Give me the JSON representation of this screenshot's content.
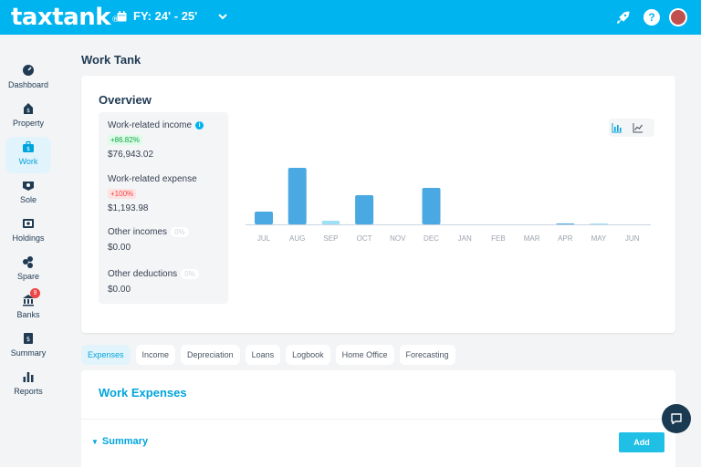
{
  "brand": {
    "logo": "taxtank",
    "reg_mark": "®"
  },
  "header": {
    "fiscal_year": "FY: 24' - 25'"
  },
  "sidebar": {
    "items": [
      {
        "label": "Dashboard",
        "icon": "dashboard-icon"
      },
      {
        "label": "Property",
        "icon": "property-icon"
      },
      {
        "label": "Work",
        "icon": "work-icon",
        "active": true
      },
      {
        "label": "Sole",
        "icon": "sole-icon"
      },
      {
        "label": "Holdings",
        "icon": "holdings-icon"
      },
      {
        "label": "Spare",
        "icon": "spare-icon"
      },
      {
        "label": "Banks",
        "icon": "bank-icon",
        "badge": "9"
      },
      {
        "label": "Summary",
        "icon": "summary-icon"
      },
      {
        "label": "Reports",
        "icon": "reports-icon"
      }
    ]
  },
  "page": {
    "title": "Work Tank"
  },
  "overview": {
    "title": "Overview",
    "stats": [
      {
        "name": "Work-related income",
        "change": "+86.82%",
        "value": "$76,943.02"
      },
      {
        "name": "Work-related expense",
        "change": "+100%",
        "value": "$1,193.98"
      },
      {
        "name": "Other incomes",
        "change": "0%",
        "value": "$0.00"
      },
      {
        "name": "Other deductions",
        "change": "0%",
        "value": "$0.00"
      }
    ]
  },
  "chart_data": {
    "type": "bar",
    "categories": [
      "JUL",
      "AUG",
      "SEP",
      "OCT",
      "NOV",
      "DEC",
      "JAN",
      "FEB",
      "MAR",
      "APR",
      "MAY",
      "JUN"
    ],
    "series": [
      {
        "values": [
          14,
          62,
          4,
          32,
          0,
          40,
          0,
          0,
          0,
          1,
          1,
          0
        ]
      }
    ],
    "colors": [
      "#4aa8e2",
      "#4aa8e2",
      "#9ee0f5",
      "#4aa8e2",
      "#4aa8e2",
      "#4aa8e2",
      "#4aa8e2",
      "#4aa8e2",
      "#4aa8e2",
      "#4aa8e2",
      "#9ee0f5",
      "#4aa8e2"
    ],
    "ylim": [
      0,
      62
    ],
    "grid": false,
    "xlabel": "",
    "ylabel": ""
  },
  "tabs": [
    "Expenses",
    "Income",
    "Depreciation",
    "Loans",
    "Logbook",
    "Home Office",
    "Forecasting"
  ],
  "expenses": {
    "title": "Work Expenses",
    "summary_label": "Summary",
    "add_label": "Add"
  },
  "colors": {
    "accent": "#00b4ef",
    "dark": "#1f3a52",
    "bar": "#4aa8e2"
  }
}
